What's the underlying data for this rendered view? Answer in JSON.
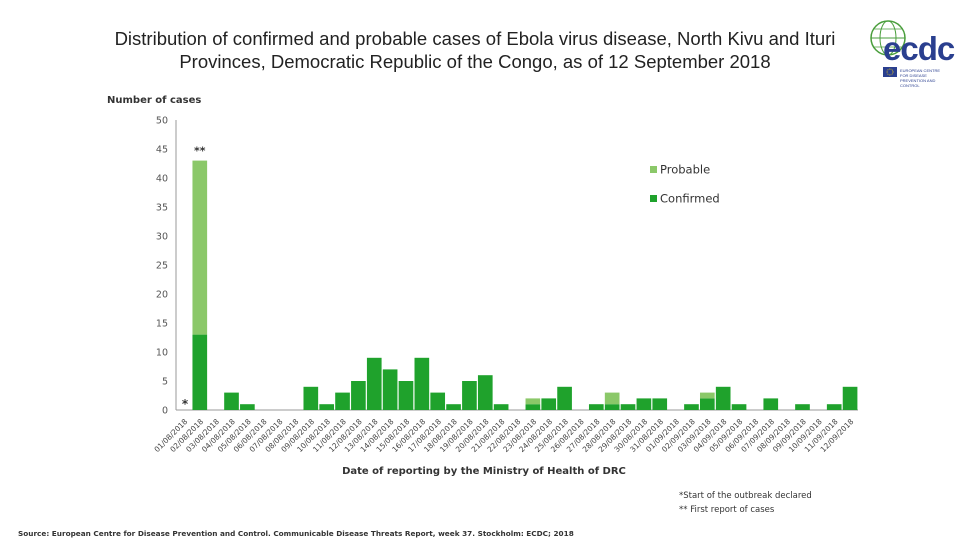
{
  "title": "Distribution of confirmed and probable cases of Ebola virus disease, North Kivu and Ituri Provinces, Democratic Republic of the Congo, as of 12 September 2018",
  "logo": {
    "text": "ecdc",
    "subtitle": "EUROPEAN CENTRE FOR DISEASE PREVENTION AND CONTROL"
  },
  "source": "Source: European Centre for Disease Prevention and Control. Communicable Disease Threats Report, week 37. Stockholm: ECDC; 2018",
  "footnotes": {
    "start": "*Start of the outbreak declared",
    "first": "** First report of cases"
  },
  "colors": {
    "probable": "#8bc869",
    "confirmed": "#1fa22c",
    "axis": "#999999"
  },
  "chart_data": {
    "type": "bar",
    "stacked": true,
    "ylabel": "Number of cases",
    "xlabel": "Date of reporting by the Ministry of Health of DRC",
    "ylim": [
      0,
      50
    ],
    "yticks": [
      "0",
      "5",
      "10",
      "15",
      "20",
      "25",
      "30",
      "35",
      "40",
      "45",
      "50"
    ],
    "legend": {
      "position": "top-right",
      "items": [
        "Probable",
        "Confirmed"
      ]
    },
    "annotations": [
      {
        "label": "*",
        "category_index": 0
      },
      {
        "label": "**",
        "category_index": 1
      }
    ],
    "categories": [
      "01/08/2018",
      "02/08/2018",
      "03/08/2018",
      "04/08/2018",
      "05/08/2018",
      "06/08/2018",
      "07/08/2018",
      "08/08/2018",
      "09/08/2018",
      "10/08/2018",
      "11/08/2018",
      "12/08/2018",
      "13/08/2018",
      "14/08/2018",
      "15/08/2018",
      "16/08/2018",
      "17/08/2018",
      "18/08/2018",
      "19/08/2018",
      "20/08/2018",
      "21/08/2018",
      "22/08/2018",
      "23/08/2018",
      "24/08/2018",
      "25/08/2018",
      "26/08/2018",
      "27/08/2018",
      "28/08/2018",
      "29/08/2018",
      "30/08/2018",
      "31/08/2018",
      "01/09/2018",
      "02/09/2018",
      "03/09/2018",
      "04/09/2018",
      "05/09/2018",
      "06/09/2018",
      "07/09/2018",
      "08/09/2018",
      "09/09/2018",
      "10/09/2018",
      "11/09/2018",
      "12/09/2018"
    ],
    "tick_labels": [
      "01/08/2018",
      "02/08/2018",
      "03/08/2018",
      "04/08/2018",
      "05/08/2018",
      "06/08/2018",
      "07/08/2018",
      "08/08/2018",
      "09/08/2018",
      "10/08/2018",
      "11/08/2018",
      "12/08/2018",
      "13/08/2018",
      "14/08/2018",
      "15/08/2018",
      "16/08/2018",
      "17/08/2018",
      "18/08/2018",
      "19/08/2018",
      "20/08/2018",
      "21/08/2018",
      "22/08/2018",
      "23/08/2018",
      "24/08/2018",
      "25/08/2018",
      "26/08/2018",
      "27/08/2018",
      "28/08/2018",
      "29/08/2018",
      "30/08/2018",
      "31/08/2018",
      "01/09/2018",
      "02/09/2018",
      "03/09/2018",
      "04/09/2018",
      "05/09/2018",
      "06/09/2018",
      "07/09/2018",
      "08/09/2018",
      "09/09/2018",
      "10/09/2018",
      "11/09/2018",
      "12/09/2018"
    ],
    "series": [
      {
        "name": "Confirmed",
        "values": [
          0,
          13,
          0,
          3,
          1,
          0,
          0,
          0,
          4,
          1,
          3,
          5,
          9,
          7,
          5,
          9,
          3,
          1,
          5,
          6,
          1,
          0,
          1,
          2,
          4,
          0,
          1,
          1,
          1,
          2,
          2,
          0,
          1,
          2,
          4,
          1,
          0,
          2,
          0,
          1,
          0,
          1,
          4
        ]
      },
      {
        "name": "Probable",
        "values": [
          0,
          30,
          0,
          0,
          0,
          0,
          0,
          0,
          0,
          0,
          0,
          0,
          0,
          0,
          0,
          0,
          0,
          0,
          0,
          0,
          0,
          0,
          1,
          0,
          0,
          0,
          0,
          2,
          0,
          0,
          0,
          0,
          0,
          1,
          0,
          0,
          0,
          0,
          0,
          0,
          0,
          0,
          0
        ]
      }
    ]
  }
}
